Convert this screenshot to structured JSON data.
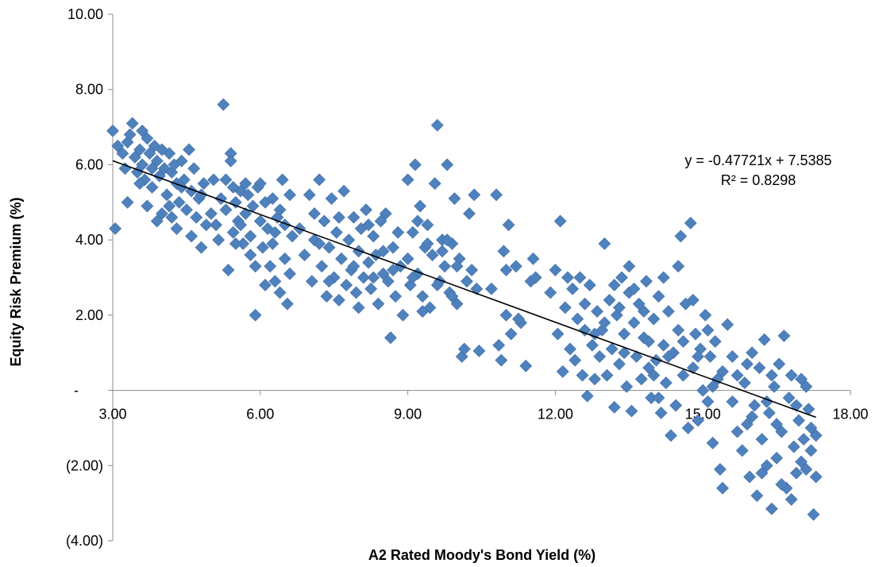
{
  "chart_data": {
    "type": "scatter",
    "title": "",
    "xlabel": "A2 Rated Moody's Bond Yield (%)",
    "ylabel": "Equity Risk Premium (%)",
    "xlim": [
      3.0,
      18.0
    ],
    "ylim": [
      -4.0,
      10.0
    ],
    "x_ticks": [
      {
        "value": 3,
        "label": "3.00"
      },
      {
        "value": 6,
        "label": "6.00"
      },
      {
        "value": 9,
        "label": "9.00"
      },
      {
        "value": 12,
        "label": "12.00"
      },
      {
        "value": 15,
        "label": "15.00"
      },
      {
        "value": 18,
        "label": "18.00"
      }
    ],
    "y_ticks": [
      {
        "value": 10,
        "label": "10.00"
      },
      {
        "value": 8,
        "label": "8.00"
      },
      {
        "value": 6,
        "label": "6.00"
      },
      {
        "value": 4,
        "label": "4.00"
      },
      {
        "value": 2,
        "label": "2.00"
      },
      {
        "value": 0,
        "label": "-"
      },
      {
        "value": -2,
        "label": "(2.00)"
      },
      {
        "value": -4,
        "label": "(4.00)"
      }
    ],
    "grid": false,
    "legend": "none",
    "marker": "diamond",
    "marker_color": "#4f81bd",
    "trendline": {
      "slope": -0.47721,
      "intercept": 7.5385,
      "x_range": [
        3.0,
        17.3
      ],
      "equation": "y = -0.47721x + 7.5385",
      "r_squared": "R² = 0.8298"
    },
    "points": [
      [
        3.0,
        6.9
      ],
      [
        3.05,
        4.3
      ],
      [
        3.1,
        6.5
      ],
      [
        3.2,
        6.3
      ],
      [
        3.25,
        5.9
      ],
      [
        3.3,
        6.6
      ],
      [
        3.35,
        6.8
      ],
      [
        3.4,
        7.1
      ],
      [
        3.45,
        6.2
      ],
      [
        3.5,
        5.8
      ],
      [
        3.55,
        6.4
      ],
      [
        3.6,
        6.0
      ],
      [
        3.65,
        5.6
      ],
      [
        3.7,
        6.7
      ],
      [
        3.75,
        6.3
      ],
      [
        3.8,
        5.4
      ],
      [
        3.85,
        6.5
      ],
      [
        3.9,
        6.1
      ],
      [
        3.95,
        5.7
      ],
      [
        4.0,
        6.4
      ],
      [
        4.05,
        5.9
      ],
      [
        4.1,
        5.2
      ],
      [
        4.15,
        6.3
      ],
      [
        4.2,
        5.8
      ],
      [
        4.25,
        6.0
      ],
      [
        4.3,
        5.5
      ],
      [
        4.35,
        5.0
      ],
      [
        4.4,
        6.1
      ],
      [
        4.45,
        5.6
      ],
      [
        4.5,
        4.8
      ],
      [
        4.55,
        6.4
      ],
      [
        4.6,
        5.3
      ],
      [
        4.65,
        5.9
      ],
      [
        4.7,
        4.6
      ],
      [
        4.75,
        5.1
      ],
      [
        4.8,
        3.8
      ],
      [
        4.85,
        5.5
      ],
      [
        4.9,
        4.4
      ],
      [
        3.3,
        5.0
      ],
      [
        3.7,
        4.9
      ],
      [
        3.9,
        4.5
      ],
      [
        4.3,
        4.3
      ],
      [
        4.6,
        4.1
      ],
      [
        3.55,
        5.5
      ],
      [
        3.8,
        5.9
      ],
      [
        4.0,
        4.7
      ],
      [
        4.15,
        4.9
      ],
      [
        4.4,
        5.4
      ],
      [
        4.2,
        4.6
      ],
      [
        3.6,
        6.9
      ],
      [
        4.8,
        5.2
      ],
      [
        5.0,
        4.7
      ],
      [
        5.05,
        5.6
      ],
      [
        5.1,
        4.4
      ],
      [
        5.2,
        5.1
      ],
      [
        5.3,
        4.8
      ],
      [
        5.35,
        3.2
      ],
      [
        5.4,
        6.3
      ],
      [
        5.4,
        6.1
      ],
      [
        5.45,
        4.2
      ],
      [
        5.5,
        5.0
      ],
      [
        5.55,
        4.5
      ],
      [
        5.6,
        5.3
      ],
      [
        5.65,
        3.9
      ],
      [
        5.7,
        4.7
      ],
      [
        5.75,
        5.2
      ],
      [
        5.8,
        4.1
      ],
      [
        5.85,
        4.9
      ],
      [
        5.9,
        2.0
      ],
      [
        5.95,
        5.4
      ],
      [
        6.0,
        4.5
      ],
      [
        6.05,
        3.8
      ],
      [
        6.1,
        5.0
      ],
      [
        6.15,
        4.3
      ],
      [
        6.2,
        3.3
      ],
      [
        6.25,
        5.1
      ],
      [
        6.3,
        2.9
      ],
      [
        6.35,
        4.6
      ],
      [
        6.4,
        2.6
      ],
      [
        6.45,
        5.6
      ],
      [
        6.5,
        3.5
      ],
      [
        6.55,
        2.3
      ],
      [
        6.6,
        5.2
      ],
      [
        6.65,
        4.1
      ],
      [
        5.25,
        7.6
      ],
      [
        5.3,
        5.6
      ],
      [
        5.6,
        4.4
      ],
      [
        5.8,
        3.6
      ],
      [
        6.0,
        5.5
      ],
      [
        6.25,
        3.9
      ],
      [
        6.4,
        4.8
      ],
      [
        5.5,
        3.9
      ],
      [
        5.7,
        5.5
      ],
      [
        6.1,
        2.8
      ],
      [
        6.5,
        4.4
      ],
      [
        5.15,
        4.0
      ],
      [
        5.9,
        3.3
      ],
      [
        6.3,
        4.2
      ],
      [
        5.45,
        5.4
      ],
      [
        6.6,
        3.1
      ],
      [
        6.8,
        4.3
      ],
      [
        6.9,
        3.6
      ],
      [
        7.0,
        5.2
      ],
      [
        7.05,
        2.9
      ],
      [
        7.1,
        4.0
      ],
      [
        7.2,
        5.6
      ],
      [
        7.25,
        3.3
      ],
      [
        7.3,
        4.5
      ],
      [
        7.35,
        2.5
      ],
      [
        7.4,
        3.8
      ],
      [
        7.45,
        5.1
      ],
      [
        7.5,
        3.0
      ],
      [
        7.55,
        4.2
      ],
      [
        7.6,
        2.4
      ],
      [
        7.65,
        3.5
      ],
      [
        7.7,
        5.3
      ],
      [
        7.75,
        2.8
      ],
      [
        7.8,
        4.0
      ],
      [
        7.85,
        3.2
      ],
      [
        7.9,
        4.6
      ],
      [
        7.95,
        2.6
      ],
      [
        8.0,
        3.7
      ],
      [
        8.05,
        4.3
      ],
      [
        8.1,
        3.0
      ],
      [
        8.15,
        4.8
      ],
      [
        8.2,
        3.4
      ],
      [
        8.25,
        2.7
      ],
      [
        8.3,
        4.1
      ],
      [
        8.35,
        3.6
      ],
      [
        8.4,
        2.3
      ],
      [
        8.45,
        4.5
      ],
      [
        8.5,
        3.1
      ],
      [
        8.55,
        4.7
      ],
      [
        8.6,
        2.9
      ],
      [
        8.65,
        1.4
      ],
      [
        8.7,
        3.8
      ],
      [
        8.75,
        2.5
      ],
      [
        8.8,
        4.2
      ],
      [
        8.85,
        3.3
      ],
      [
        8.9,
        2.0
      ],
      [
        7.2,
        3.9
      ],
      [
        7.6,
        4.6
      ],
      [
        7.9,
        3.3
      ],
      [
        8.2,
        4.4
      ],
      [
        8.5,
        3.7
      ],
      [
        7.4,
        2.9
      ],
      [
        8.0,
        2.2
      ],
      [
        7.1,
        4.7
      ],
      [
        8.3,
        3.0
      ],
      [
        8.7,
        3.2
      ],
      [
        9.0,
        3.5
      ],
      [
        9.05,
        2.8
      ],
      [
        9.1,
        4.2
      ],
      [
        9.15,
        6.0
      ],
      [
        9.2,
        3.1
      ],
      [
        9.25,
        4.9
      ],
      [
        9.3,
        2.5
      ],
      [
        9.35,
        3.8
      ],
      [
        9.4,
        4.4
      ],
      [
        9.45,
        2.2
      ],
      [
        9.5,
        3.6
      ],
      [
        9.55,
        5.5
      ],
      [
        9.6,
        7.05
      ],
      [
        9.65,
        2.9
      ],
      [
        9.7,
        4.0
      ],
      [
        9.75,
        3.3
      ],
      [
        9.8,
        6.0
      ],
      [
        9.85,
        2.6
      ],
      [
        9.9,
        3.9
      ],
      [
        9.95,
        5.1
      ],
      [
        10.0,
        2.3
      ],
      [
        10.05,
        3.5
      ],
      [
        10.1,
        0.9
      ],
      [
        10.15,
        1.1
      ],
      [
        10.2,
        2.9
      ],
      [
        10.25,
        4.7
      ],
      [
        10.3,
        3.2
      ],
      [
        10.35,
        5.2
      ],
      [
        10.4,
        2.7
      ],
      [
        10.45,
        1.05
      ],
      [
        9.0,
        5.6
      ],
      [
        9.2,
        4.5
      ],
      [
        9.4,
        3.9
      ],
      [
        9.6,
        2.8
      ],
      [
        9.8,
        4.0
      ],
      [
        10.0,
        3.3
      ],
      [
        9.3,
        2.1
      ],
      [
        9.7,
        3.7
      ],
      [
        9.1,
        3.0
      ],
      [
        9.9,
        2.5
      ],
      [
        10.7,
        2.7
      ],
      [
        10.8,
        5.2
      ],
      [
        10.85,
        1.2
      ],
      [
        10.9,
        0.8
      ],
      [
        11.0,
        2.0
      ],
      [
        11.05,
        4.4
      ],
      [
        11.1,
        1.5
      ],
      [
        11.2,
        3.3
      ],
      [
        11.3,
        1.8
      ],
      [
        11.4,
        0.65
      ],
      [
        11.5,
        2.9
      ],
      [
        11.55,
        3.5
      ],
      [
        10.95,
        3.7
      ],
      [
        11.25,
        1.9
      ],
      [
        11.6,
        3.0
      ],
      [
        11.0,
        3.2
      ],
      [
        11.9,
        2.6
      ],
      [
        12.0,
        3.2
      ],
      [
        12.05,
        1.5
      ],
      [
        12.1,
        4.5
      ],
      [
        12.15,
        0.5
      ],
      [
        12.2,
        2.2
      ],
      [
        12.25,
        3.0
      ],
      [
        12.3,
        1.1
      ],
      [
        12.35,
        2.7
      ],
      [
        12.4,
        0.8
      ],
      [
        12.45,
        1.9
      ],
      [
        12.5,
        3.0
      ],
      [
        12.55,
        0.4
      ],
      [
        12.6,
        1.6
      ],
      [
        12.65,
        -0.15
      ],
      [
        12.7,
        2.8
      ],
      [
        12.75,
        1.2
      ],
      [
        12.8,
        0.3
      ],
      [
        12.85,
        2.1
      ],
      [
        12.9,
        0.9
      ],
      [
        12.95,
        1.6
      ],
      [
        13.0,
        3.9
      ],
      [
        13.05,
        0.4
      ],
      [
        13.1,
        2.4
      ],
      [
        13.15,
        1.1
      ],
      [
        13.2,
        -0.45
      ],
      [
        13.25,
        2.0
      ],
      [
        13.3,
        0.7
      ],
      [
        13.35,
        3.0
      ],
      [
        13.4,
        1.5
      ],
      [
        13.45,
        0.1
      ],
      [
        13.5,
        2.6
      ],
      [
        13.55,
        -0.55
      ],
      [
        13.6,
        1.8
      ],
      [
        13.65,
        0.9
      ],
      [
        13.7,
        2.3
      ],
      [
        13.75,
        0.3
      ],
      [
        13.8,
        1.4
      ],
      [
        13.85,
        2.9
      ],
      [
        13.9,
        0.6
      ],
      [
        13.95,
        -0.2
      ],
      [
        14.0,
        1.9
      ],
      [
        14.05,
        0.8
      ],
      [
        14.1,
        2.5
      ],
      [
        14.15,
        -0.6
      ],
      [
        14.2,
        1.2
      ],
      [
        14.25,
        0.2
      ],
      [
        14.3,
        2.1
      ],
      [
        14.35,
        -1.2
      ],
      [
        14.4,
        1.0
      ],
      [
        14.45,
        -0.4
      ],
      [
        14.5,
        1.6
      ],
      [
        14.55,
        4.1
      ],
      [
        14.6,
        0.4
      ],
      [
        14.65,
        2.3
      ],
      [
        14.7,
        -1.0
      ],
      [
        14.75,
        4.45
      ],
      [
        14.8,
        0.6
      ],
      [
        14.85,
        1.5
      ],
      [
        14.9,
        -0.8
      ],
      [
        14.95,
        1.1
      ],
      [
        15.0,
        0.0
      ],
      [
        15.05,
        2.0
      ],
      [
        15.1,
        -0.3
      ],
      [
        15.15,
        0.9
      ],
      [
        15.2,
        -1.4
      ],
      [
        15.25,
        1.3
      ],
      [
        15.3,
        0.3
      ],
      [
        15.35,
        -2.1
      ],
      [
        15.4,
        0.5
      ],
      [
        13.2,
        2.8
      ],
      [
        13.6,
        2.7
      ],
      [
        13.4,
        1.0
      ],
      [
        14.0,
        0.4
      ],
      [
        14.3,
        0.9
      ],
      [
        13.8,
        2.1
      ],
      [
        14.6,
        1.3
      ],
      [
        13.0,
        1.8
      ],
      [
        12.8,
        1.5
      ],
      [
        14.2,
        3.0
      ],
      [
        13.5,
        3.3
      ],
      [
        14.8,
        2.4
      ],
      [
        15.1,
        1.6
      ],
      [
        13.3,
        2.2
      ],
      [
        14.5,
        3.3
      ],
      [
        14.9,
        0.9
      ],
      [
        12.6,
        2.3
      ],
      [
        13.9,
        1.3
      ],
      [
        14.1,
        -0.2
      ],
      [
        15.2,
        0.1
      ],
      [
        15.5,
        1.75
      ],
      [
        15.6,
        -0.3
      ],
      [
        15.7,
        0.4
      ],
      [
        15.8,
        -1.6
      ],
      [
        15.85,
        0.2
      ],
      [
        15.9,
        -0.9
      ],
      [
        15.95,
        -2.3
      ],
      [
        16.0,
        1.0
      ],
      [
        16.05,
        -0.4
      ],
      [
        16.1,
        -2.8
      ],
      [
        16.15,
        0.6
      ],
      [
        16.2,
        -1.3
      ],
      [
        16.25,
        1.35
      ],
      [
        16.3,
        -2.0
      ],
      [
        16.35,
        -0.6
      ],
      [
        16.4,
        -3.15
      ],
      [
        16.45,
        0.1
      ],
      [
        16.5,
        -1.8
      ],
      [
        16.55,
        0.7
      ],
      [
        16.6,
        -1.1
      ],
      [
        16.65,
        1.45
      ],
      [
        16.7,
        -2.6
      ],
      [
        16.75,
        -0.2
      ],
      [
        16.8,
        0.4
      ],
      [
        16.85,
        -1.5
      ],
      [
        16.9,
        -2.2
      ],
      [
        16.95,
        -0.8
      ],
      [
        17.0,
        0.3
      ],
      [
        17.05,
        -1.3
      ],
      [
        17.1,
        -2.1
      ],
      [
        17.15,
        -0.5
      ],
      [
        17.2,
        -1.6
      ],
      [
        17.25,
        -3.3
      ],
      [
        17.3,
        -1.2
      ],
      [
        17.0,
        -1.9
      ],
      [
        16.6,
        -2.5
      ],
      [
        16.0,
        -0.7
      ],
      [
        16.4,
        0.4
      ],
      [
        16.9,
        -0.4
      ],
      [
        17.2,
        -1.0
      ],
      [
        15.7,
        -1.1
      ],
      [
        16.3,
        -0.3
      ],
      [
        16.8,
        -2.9
      ],
      [
        15.4,
        -2.6
      ],
      [
        16.2,
        -2.2
      ],
      [
        17.1,
        0.1
      ],
      [
        15.9,
        0.7
      ],
      [
        16.5,
        -0.9
      ],
      [
        17.3,
        -2.3
      ],
      [
        15.6,
        0.9
      ]
    ]
  }
}
